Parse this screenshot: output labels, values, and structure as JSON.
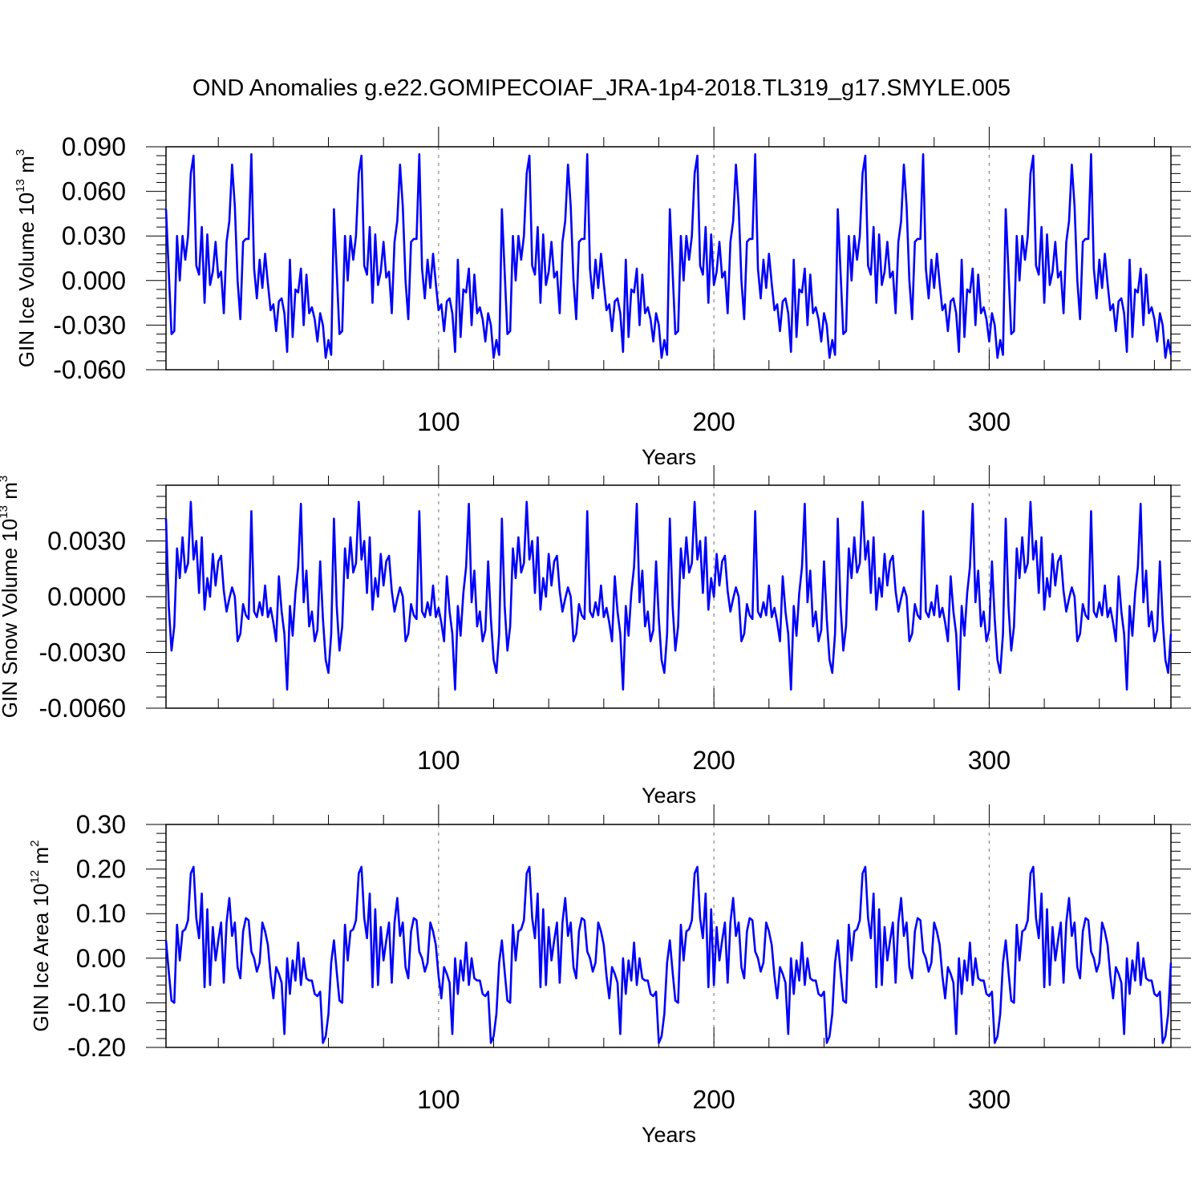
{
  "figure_title": "OND Anomalies g.e22.GOMIPECOIAF_JRA-1p4-2018.TL319_g17.SMYLE.005",
  "chart_data": [
    {
      "type": "line",
      "title": "OND Anomalies g.e22.GOMIPECOIAF_JRA-1p4-2018.TL319_g17.SMYLE.005",
      "xlabel": "Years",
      "ylabel": {
        "main": "GIN Ice Volume 10",
        "exp": "13",
        "unit": " m",
        "unit_exp": "3"
      },
      "xlim": [
        1,
        366
      ],
      "ylim": [
        -0.06,
        0.09
      ],
      "yticks": [
        -0.06,
        -0.03,
        0.0,
        0.03,
        0.06,
        0.09
      ],
      "ytick_labels": [
        "-0.060",
        "-0.030",
        "0.000",
        "0.030",
        "0.060",
        "0.090"
      ],
      "xticks": [
        100,
        200,
        300
      ],
      "xtick_labels": [
        "100",
        "200",
        "300"
      ],
      "reference_lines_x": [
        100,
        200,
        300
      ],
      "series_color": "#0000ff",
      "cycle_length": 61,
      "cycle_values": [
        0.048,
        0.006,
        -0.036,
        -0.034,
        0.03,
        0.0,
        0.03,
        0.014,
        0.03,
        0.072,
        0.084,
        0.01,
        0.004,
        0.036,
        -0.015,
        0.031,
        -0.003,
        0.006,
        0.026,
        0.002,
        0.006,
        -0.022,
        0.026,
        0.04,
        0.078,
        0.05,
        0.0,
        -0.026,
        0.026,
        0.028,
        0.028,
        0.085,
        0.008,
        -0.012,
        0.014,
        -0.005,
        0.018,
        -0.002,
        -0.02,
        -0.016,
        -0.034,
        -0.014,
        -0.012,
        -0.022,
        -0.048,
        0.014,
        -0.038,
        -0.006,
        -0.008,
        0.008,
        -0.03,
        0.004,
        -0.022,
        -0.018,
        -0.026,
        -0.041,
        -0.022,
        -0.03,
        -0.052,
        -0.04,
        -0.05
      ],
      "series_note": "The plotted series repeats a 61-year cycle; values per year are cycle_values[(year-1) mod 61]."
    },
    {
      "type": "line",
      "xlabel": "Years",
      "ylabel": {
        "main": "GIN Snow Volume 10",
        "exp": "13",
        "unit": " m",
        "unit_exp": "3"
      },
      "xlim": [
        1,
        366
      ],
      "ylim": [
        -0.006,
        0.006
      ],
      "yticks": [
        -0.006,
        -0.003,
        0.0,
        0.003
      ],
      "ytick_labels": [
        "-0.0060",
        "-0.0030",
        "0.0000",
        "0.0030"
      ],
      "xticks": [
        100,
        200,
        300
      ],
      "xtick_labels": [
        "100",
        "200",
        "300"
      ],
      "reference_lines_x": [
        100,
        200,
        300
      ],
      "series_color": "#0000ff",
      "cycle_length": 61,
      "cycle_values": [
        0.0042,
        -0.0005,
        -0.0029,
        -0.0016,
        0.0026,
        0.001,
        0.0032,
        0.0013,
        0.0018,
        0.0051,
        0.002,
        0.003,
        0.0002,
        0.0032,
        -0.0007,
        0.001,
        0.0,
        0.0023,
        0.0006,
        0.0019,
        0.0022,
        0.0003,
        -0.0008,
        -0.0001,
        0.0005,
        0.0,
        -0.0024,
        -0.002,
        -0.0004,
        -0.001,
        -0.0012,
        0.0046,
        -0.0008,
        -0.0011,
        -0.0003,
        -0.001,
        0.0006,
        -0.0011,
        -0.0006,
        -0.0014,
        -0.0024,
        0.0011,
        -0.0008,
        -0.002,
        -0.005,
        -0.0005,
        -0.0021,
        0.0002,
        0.0016,
        0.005,
        -0.0003,
        0.0014,
        -0.0016,
        -0.0008,
        -0.0024,
        -0.0018,
        0.0019,
        -0.0012,
        -0.0034,
        -0.0041,
        -0.002
      ],
      "series_note": "The plotted series repeats a 61-year cycle; values per year are cycle_values[(year-1) mod 61]."
    },
    {
      "type": "line",
      "xlabel": "Years",
      "ylabel": {
        "main": "GIN Ice Area 10",
        "exp": "12",
        "unit": " m",
        "unit_exp": "2"
      },
      "xlim": [
        1,
        366
      ],
      "ylim": [
        -0.2,
        0.3
      ],
      "yticks": [
        -0.2,
        -0.1,
        0.0,
        0.1,
        0.2,
        0.3
      ],
      "ytick_labels": [
        "-0.20",
        "-0.10",
        "0.00",
        "0.10",
        "0.20",
        "0.30"
      ],
      "xticks": [
        100,
        200,
        300
      ],
      "xtick_labels": [
        "100",
        "200",
        "300"
      ],
      "reference_lines_x": [
        100,
        200,
        300
      ],
      "series_color": "#0000ff",
      "cycle_length": 61,
      "cycle_values": [
        0.04,
        -0.03,
        -0.095,
        -0.1,
        0.075,
        -0.005,
        0.06,
        0.065,
        0.085,
        0.19,
        0.205,
        0.09,
        0.045,
        0.145,
        -0.065,
        0.11,
        -0.06,
        0.07,
        -0.005,
        0.04,
        0.08,
        -0.055,
        0.08,
        0.135,
        0.05,
        0.08,
        -0.02,
        -0.045,
        0.06,
        0.09,
        0.085,
        0.015,
        0.0,
        -0.03,
        -0.01,
        0.08,
        0.06,
        0.03,
        -0.04,
        -0.09,
        -0.02,
        -0.035,
        -0.055,
        -0.17,
        0.0,
        -0.08,
        -0.005,
        -0.05,
        0.035,
        -0.06,
        0.0,
        -0.045,
        -0.05,
        -0.05,
        -0.08,
        -0.085,
        -0.075,
        -0.19,
        -0.175,
        -0.125,
        -0.01
      ],
      "series_note": "The plotted series repeats a 61-year cycle; values per year are cycle_values[(year-1) mod 61]."
    }
  ]
}
